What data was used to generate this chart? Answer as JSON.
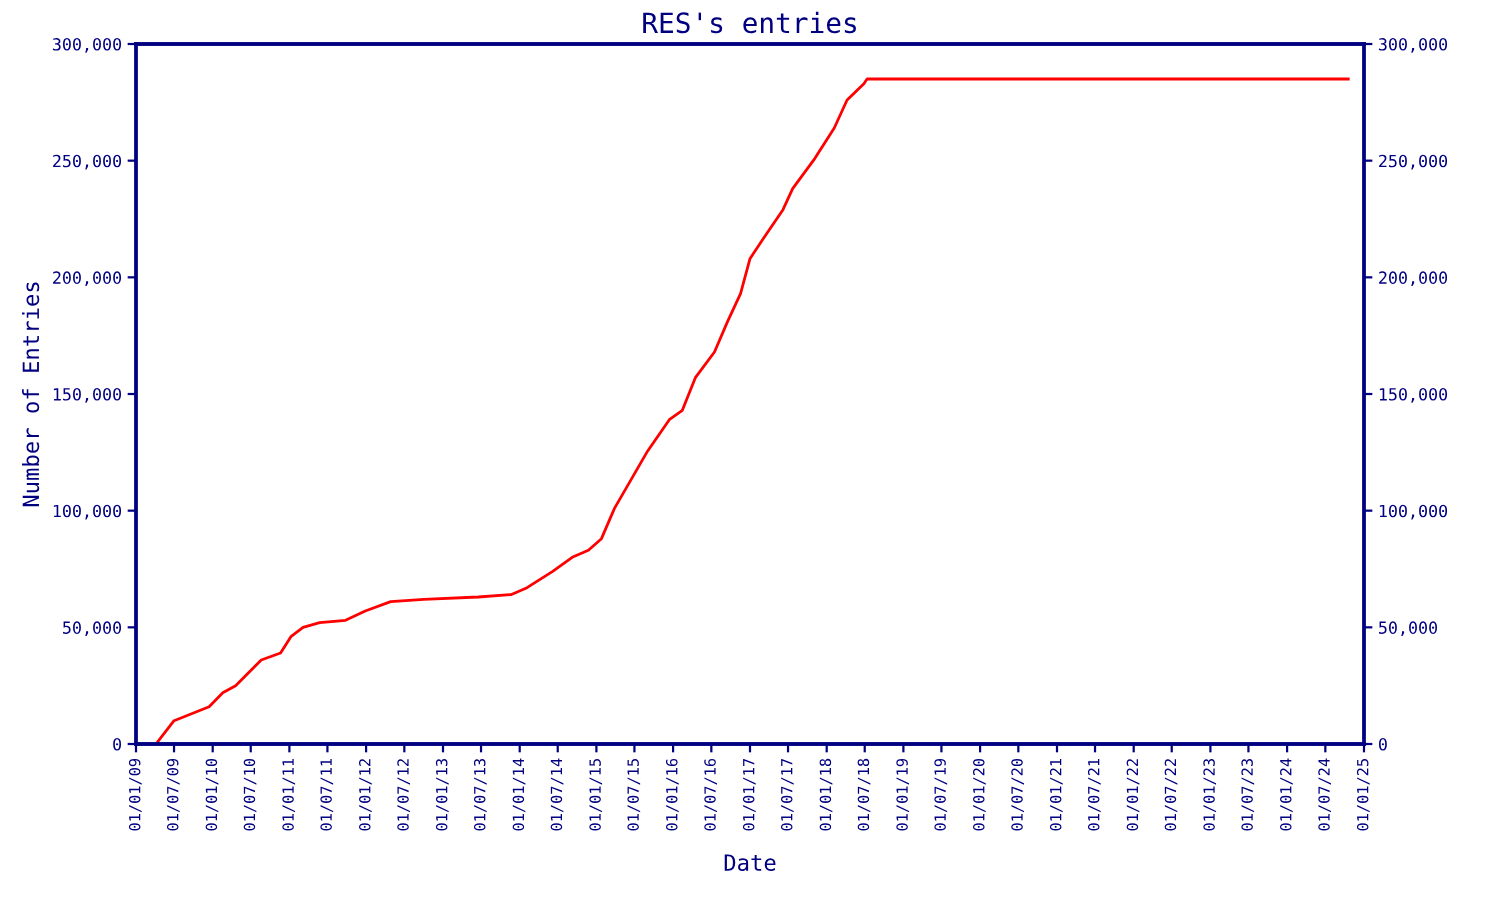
{
  "chart_data": {
    "type": "line",
    "title": "RES's entries",
    "xlabel": "Date",
    "ylabel": "Number of Entries",
    "x": [
      "2009-04-15",
      "2009-07-01",
      "2009-12-15",
      "2010-02-18",
      "2010-04-20",
      "2010-08-20",
      "2010-11-20",
      "2011-01-08",
      "2011-03-07",
      "2011-05-25",
      "2011-09-25",
      "2011-12-28",
      "2012-04-27",
      "2012-10-01",
      "2013-06-18",
      "2013-11-20",
      "2014-02-05",
      "2014-06-07",
      "2014-09-08",
      "2014-11-24",
      "2015-01-25",
      "2015-03-28",
      "2015-08-29",
      "2015-12-14",
      "2016-02-14",
      "2016-04-16",
      "2016-07-16",
      "2016-09-16",
      "2016-11-17",
      "2017-01-01",
      "2017-03-08",
      "2017-06-07",
      "2017-07-23",
      "2017-11-06",
      "2018-02-06",
      "2018-04-08",
      "2018-06-27",
      "2018-07-12",
      "2024-10-18"
    ],
    "series": [
      {
        "color": "#ff0000",
        "values": [
          1000,
          10000,
          16000,
          22000,
          25000,
          36000,
          39000,
          46000,
          50000,
          52000,
          53000,
          57000,
          61000,
          62000,
          63000,
          64000,
          67000,
          74000,
          80000,
          83000,
          88000,
          101000,
          125000,
          139000,
          143000,
          157000,
          168000,
          181000,
          193000,
          208000,
          217000,
          229000,
          238000,
          251000,
          264000,
          276000,
          283000,
          285000,
          285000
        ]
      }
    ],
    "xlim": [
      "2009-01-01",
      "2025-01-01"
    ],
    "xticks": [
      {
        "value": "2009-01-01",
        "label": "01/01/09"
      },
      {
        "value": "2009-07-01",
        "label": "01/07/09"
      },
      {
        "value": "2010-01-01",
        "label": "01/01/10"
      },
      {
        "value": "2010-07-01",
        "label": "01/07/10"
      },
      {
        "value": "2011-01-01",
        "label": "01/01/11"
      },
      {
        "value": "2011-07-01",
        "label": "01/07/11"
      },
      {
        "value": "2012-01-01",
        "label": "01/01/12"
      },
      {
        "value": "2012-07-01",
        "label": "01/07/12"
      },
      {
        "value": "2013-01-01",
        "label": "01/01/13"
      },
      {
        "value": "2013-07-01",
        "label": "01/07/13"
      },
      {
        "value": "2014-01-01",
        "label": "01/01/14"
      },
      {
        "value": "2014-07-01",
        "label": "01/07/14"
      },
      {
        "value": "2015-01-01",
        "label": "01/01/15"
      },
      {
        "value": "2015-07-01",
        "label": "01/07/15"
      },
      {
        "value": "2016-01-01",
        "label": "01/01/16"
      },
      {
        "value": "2016-07-01",
        "label": "01/07/16"
      },
      {
        "value": "2017-01-01",
        "label": "01/01/17"
      },
      {
        "value": "2017-07-01",
        "label": "01/07/17"
      },
      {
        "value": "2018-01-01",
        "label": "01/01/18"
      },
      {
        "value": "2018-07-01",
        "label": "01/07/18"
      },
      {
        "value": "2019-01-01",
        "label": "01/01/19"
      },
      {
        "value": "2019-07-01",
        "label": "01/07/19"
      },
      {
        "value": "2020-01-01",
        "label": "01/01/20"
      },
      {
        "value": "2020-07-01",
        "label": "01/07/20"
      },
      {
        "value": "2021-01-01",
        "label": "01/01/21"
      },
      {
        "value": "2021-07-01",
        "label": "01/07/21"
      },
      {
        "value": "2022-01-01",
        "label": "01/01/22"
      },
      {
        "value": "2022-07-01",
        "label": "01/07/22"
      },
      {
        "value": "2023-01-01",
        "label": "01/01/23"
      },
      {
        "value": "2023-07-01",
        "label": "01/07/23"
      },
      {
        "value": "2024-01-01",
        "label": "01/01/24"
      },
      {
        "value": "2024-07-01",
        "label": "01/07/24"
      },
      {
        "value": "2025-01-01",
        "label": "01/01/25"
      }
    ],
    "ylim": [
      0,
      300000
    ],
    "yticks": [
      0,
      {
        "value": 50000,
        "label": "50,000"
      },
      {
        "value": 100000,
        "label": "100,000"
      },
      {
        "value": 150000,
        "label": "150,000"
      },
      {
        "value": 200000,
        "label": "200,000"
      },
      {
        "value": 250000,
        "label": "250,000"
      },
      {
        "value": 300000,
        "label": "300,000"
      }
    ],
    "y2lim": [
      0,
      300000
    ],
    "y2ticks": [
      0,
      {
        "value": 50000,
        "label": "50,000"
      },
      {
        "value": 100000,
        "label": "100,000"
      },
      {
        "value": 150000,
        "label": "150,000"
      },
      {
        "value": 200000,
        "label": "200,000"
      },
      {
        "value": 250000,
        "label": "250,000"
      },
      {
        "value": 300000,
        "label": "300,000"
      }
    ],
    "grid": false,
    "marker": "none",
    "line_style": "solid"
  }
}
